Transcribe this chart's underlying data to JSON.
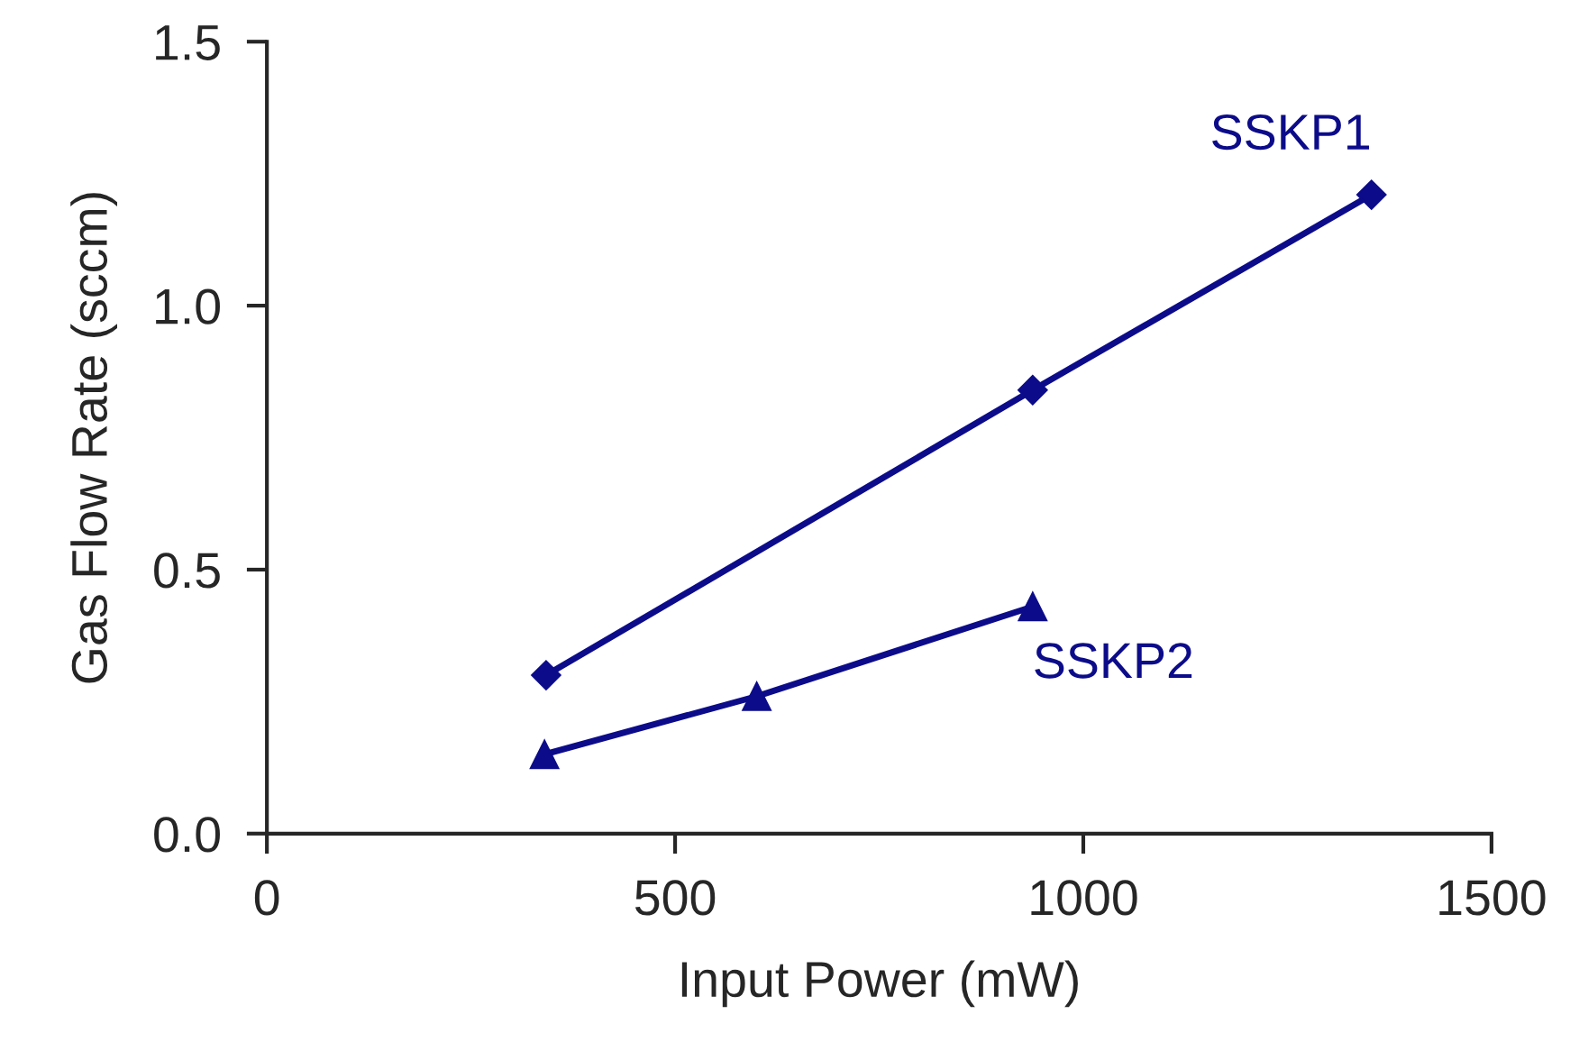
{
  "chart_data": {
    "type": "line",
    "xlabel": "Input Power (mW)",
    "ylabel": "Gas Flow Rate (sccm)",
    "xlim": [
      0,
      1500
    ],
    "xticks": [
      0,
      500,
      1000,
      1500
    ],
    "ylim": [
      0,
      1.5
    ],
    "yticks": [
      {
        "value": 0,
        "label": "0.0"
      },
      {
        "value": 0.5,
        "label": "0.5"
      },
      {
        "value": 1.0,
        "label": "1.0"
      },
      {
        "value": 1.5,
        "label": "1.5"
      }
    ],
    "grid": false,
    "legend": false,
    "line_style": "solid",
    "series": [
      {
        "name": "SSKP1",
        "color": "#0c0c8a",
        "marker": "diamond",
        "x": [
          342,
          938,
          1353
        ],
        "values": [
          0.3,
          0.84,
          1.21
        ]
      },
      {
        "name": "SSKP2",
        "color": "#0c0c8a",
        "marker": "triangle",
        "x": [
          340,
          600,
          938
        ],
        "values": [
          0.15,
          0.26,
          0.43
        ]
      }
    ]
  }
}
